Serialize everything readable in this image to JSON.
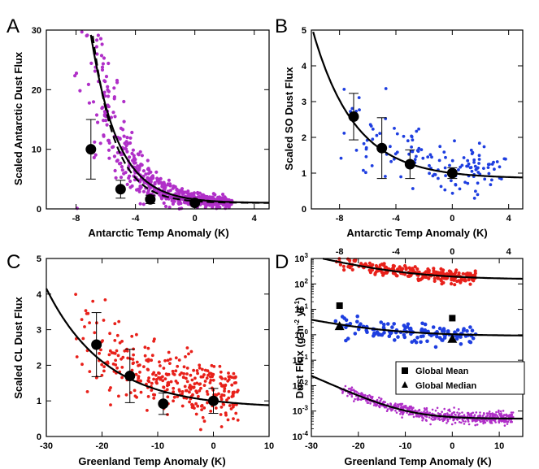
{
  "chart_data": [
    {
      "panel": "A",
      "type": "scatter",
      "xlabel": "Antarctic Temp Anomaly (K)",
      "ylabel": "Scaled Antarctic Dust Flux",
      "xlim": [
        -10,
        5
      ],
      "ylim": [
        0,
        30
      ],
      "xticks": [
        -8,
        -4,
        0,
        4
      ],
      "yticks": [
        0,
        10,
        20,
        30
      ],
      "point_color": "#b02fc8",
      "point_count": 650,
      "curve": {
        "form": "exponential",
        "asymptote": 1,
        "amplitude": 0.6,
        "rate": -0.55
      },
      "dashed_curve": {
        "form": "exponential",
        "asymptote": 1,
        "amplitude": 0.3,
        "rate": -0.66
      },
      "bin_means": [
        {
          "x": -7,
          "y": 10,
          "err": 5
        },
        {
          "x": -5,
          "y": 3.3,
          "err": 1.5
        },
        {
          "x": -3,
          "y": 1.6,
          "err": 0.7
        },
        {
          "x": 0,
          "y": 1,
          "err": 0.3
        }
      ]
    },
    {
      "panel": "B",
      "type": "scatter",
      "xlabel": "Antarctic Temp Anomaly (K)",
      "ylabel": "Scaled SO Dust Flux",
      "xlim": [
        -10,
        5
      ],
      "ylim": [
        0,
        5
      ],
      "xticks": [
        -8,
        -4,
        0,
        4
      ],
      "yticks": [
        0,
        1,
        2,
        3,
        4,
        5
      ],
      "point_color": "#1e3ee0",
      "point_count": 140,
      "curve": {
        "form": "exponential",
        "asymptote": 0.85,
        "amplitude": 0.15,
        "rate": -0.335
      },
      "bin_means": [
        {
          "x": -7,
          "y": 2.58,
          "err": 0.65
        },
        {
          "x": -5,
          "y": 1.7,
          "err": 0.85
        },
        {
          "x": -3,
          "y": 1.25,
          "err": 0.4
        },
        {
          "x": 0,
          "y": 1.0,
          "err": 0.15
        }
      ]
    },
    {
      "panel": "C",
      "type": "scatter",
      "xlabel": "Greenland Temp Anomaly (K)",
      "ylabel": "Scaled CL Dust Flux",
      "xlim": [
        -30,
        10
      ],
      "ylim": [
        0,
        5
      ],
      "xticks": [
        -30,
        -20,
        -10,
        0,
        10
      ],
      "yticks": [
        0,
        1,
        2,
        3,
        4,
        5
      ],
      "point_color": "#e8201a",
      "point_count": 340,
      "curve": {
        "form": "exponential",
        "asymptote": 0.8,
        "amplitude": 0.2,
        "rate": -0.094
      },
      "bin_means": [
        {
          "x": -21,
          "y": 2.58,
          "err": 0.9
        },
        {
          "x": -15,
          "y": 1.7,
          "err": 0.75
        },
        {
          "x": -9,
          "y": 0.92,
          "err": 0.3
        },
        {
          "x": 0,
          "y": 1.0,
          "err": 0.35
        }
      ]
    },
    {
      "panel": "D",
      "type": "scatter",
      "xlabel": "Greenland Temp Anomaly (K)",
      "ylabel": "Dust Flux (g m-2 yr-1)",
      "yscale": "log",
      "xlim": [
        -30,
        15
      ],
      "ylim": [
        0.0001,
        1000
      ],
      "xticks": [
        -30,
        -20,
        -10,
        0,
        10
      ],
      "top_axis": {
        "xlim": [
          -10,
          5
        ],
        "xticks": [
          -8,
          -4,
          0,
          4
        ]
      },
      "yticks": [
        "10^-4",
        "10^-3",
        "10^-2",
        "10^-1",
        "10^0",
        "10^1",
        "10^2",
        "10^3"
      ],
      "series": [
        {
          "color": "#e8201a",
          "point_count": 260,
          "curve": {
            "asymptote": 150,
            "amplitude": 45,
            "rate": -0.106
          }
        },
        {
          "color": "#1e3ee0",
          "point_count": 130,
          "curve": {
            "asymptote": 0.9,
            "amplitude": 0.15,
            "rate": -0.1
          }
        },
        {
          "color": "#b02fc8",
          "point_count": 650,
          "curve": {
            "asymptote": 0.0005,
            "amplitude": 8e-05,
            "rate": -0.19
          }
        }
      ],
      "global_mean": [
        {
          "x": -24,
          "y": 14
        },
        {
          "x": 0,
          "y": 4.5
        }
      ],
      "global_median": [
        {
          "x": -24,
          "y": 2.2
        },
        {
          "x": 0,
          "y": 0.7
        }
      ]
    }
  ],
  "figure": {
    "panel_labels": [
      "A",
      "B",
      "C",
      "D"
    ],
    "legend": {
      "mean_label": "Global Mean",
      "median_label": "Global Median"
    }
  }
}
